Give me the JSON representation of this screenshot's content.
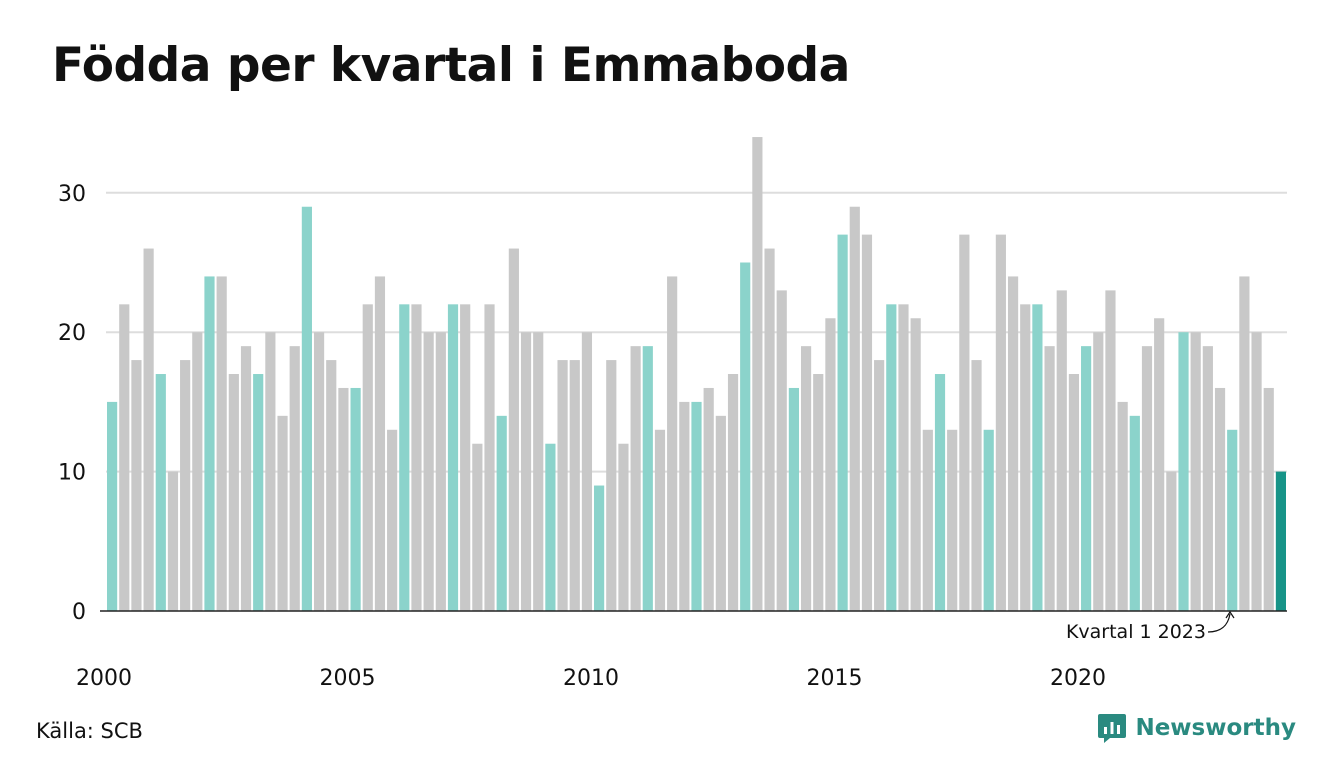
{
  "title": "Födda per kvartal i Emmaboda",
  "source": "Källa: SCB",
  "brand": "Newsworthy",
  "colors": {
    "q1": "#8bd3cb",
    "other": "#c8c8c8",
    "highlight": "#179488",
    "grid": "#dddddd",
    "axis": "#222222",
    "brand": "#2a8a80"
  },
  "chart_data": {
    "type": "bar",
    "start_year": 2000,
    "periods_per_year": 4,
    "ylim": [
      0,
      34
    ],
    "yticks": [
      0,
      10,
      20,
      30
    ],
    "xticks": [
      "2000",
      "2005",
      "2010",
      "2015",
      "2020"
    ],
    "highlight_color_applies_to": "Q1 bars",
    "annotation": "Kvartal 1 2023",
    "values": [
      15,
      22,
      18,
      26,
      17,
      10,
      18,
      20,
      24,
      24,
      17,
      19,
      17,
      20,
      14,
      19,
      29,
      20,
      18,
      16,
      16,
      22,
      24,
      13,
      22,
      22,
      20,
      20,
      22,
      22,
      12,
      22,
      14,
      26,
      20,
      20,
      12,
      18,
      18,
      20,
      9,
      18,
      12,
      19,
      19,
      13,
      24,
      15,
      15,
      16,
      14,
      17,
      25,
      34,
      26,
      23,
      16,
      19,
      17,
      21,
      27,
      29,
      27,
      18,
      22,
      22,
      21,
      13,
      17,
      13,
      27,
      18,
      13,
      27,
      24,
      22,
      22,
      19,
      23,
      17,
      19,
      20,
      23,
      15,
      14,
      19,
      21,
      10,
      20,
      20,
      19,
      16,
      13,
      24,
      20,
      16,
      10
    ]
  }
}
